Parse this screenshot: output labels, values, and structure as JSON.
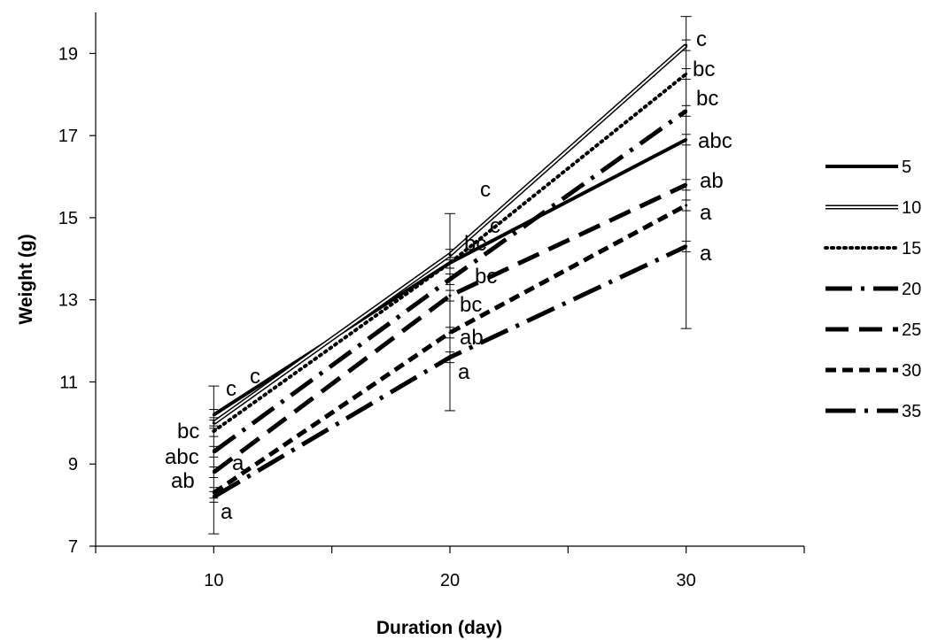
{
  "chart_data": {
    "type": "line",
    "title": "",
    "xlabel": "Duration (day)",
    "ylabel": "Weight (g)",
    "x": [
      10,
      20,
      30
    ],
    "x_ticks": [
      10,
      20,
      30
    ],
    "xlim": [
      5,
      35
    ],
    "y_ticks": [
      7,
      9,
      11,
      13,
      15,
      17,
      19
    ],
    "ylim": [
      7,
      20
    ],
    "grid": false,
    "legend": "right",
    "series": [
      {
        "name": "5",
        "values": [
          10.2,
          13.9,
          16.9
        ],
        "style": "solid-thick"
      },
      {
        "name": "10",
        "values": [
          10.0,
          14.1,
          19.2
        ],
        "style": "double"
      },
      {
        "name": "15",
        "values": [
          9.8,
          13.9,
          18.5
        ],
        "style": "dotted"
      },
      {
        "name": "20",
        "values": [
          9.3,
          13.5,
          17.6
        ],
        "style": "dash-dot"
      },
      {
        "name": "25",
        "values": [
          8.8,
          13.1,
          15.8
        ],
        "style": "long-dash"
      },
      {
        "name": "30",
        "values": [
          8.3,
          12.2,
          15.3
        ],
        "style": "short-dash"
      },
      {
        "name": "35",
        "values": [
          8.2,
          11.6,
          14.3
        ],
        "style": "long-dash-dot"
      }
    ],
    "error_bars": [
      {
        "x": 10,
        "low": 7.3,
        "high": 10.9
      },
      {
        "x": 20,
        "low": 10.3,
        "high": 15.1
      },
      {
        "x": 30,
        "low": 12.3,
        "high": 19.9
      }
    ],
    "annotations": [
      {
        "x": 10,
        "group": "c"
      },
      {
        "x": 10,
        "group": "c"
      },
      {
        "x": 10,
        "group": "bc"
      },
      {
        "x": 10,
        "group": "abc"
      },
      {
        "x": 10,
        "group": "a"
      },
      {
        "x": 10,
        "group": "ab"
      },
      {
        "x": 10,
        "group": "a"
      },
      {
        "x": 20,
        "group": "c"
      },
      {
        "x": 20,
        "group": "c"
      },
      {
        "x": 20,
        "group": "bc"
      },
      {
        "x": 20,
        "group": "bc"
      },
      {
        "x": 20,
        "group": "bc"
      },
      {
        "x": 20,
        "group": "ab"
      },
      {
        "x": 20,
        "group": "a"
      },
      {
        "x": 30,
        "group": "c"
      },
      {
        "x": 30,
        "group": "bc"
      },
      {
        "x": 30,
        "group": "bc"
      },
      {
        "x": 30,
        "group": "abc"
      },
      {
        "x": 30,
        "group": "ab"
      },
      {
        "x": 30,
        "group": "a"
      },
      {
        "x": 30,
        "group": "a"
      }
    ]
  }
}
